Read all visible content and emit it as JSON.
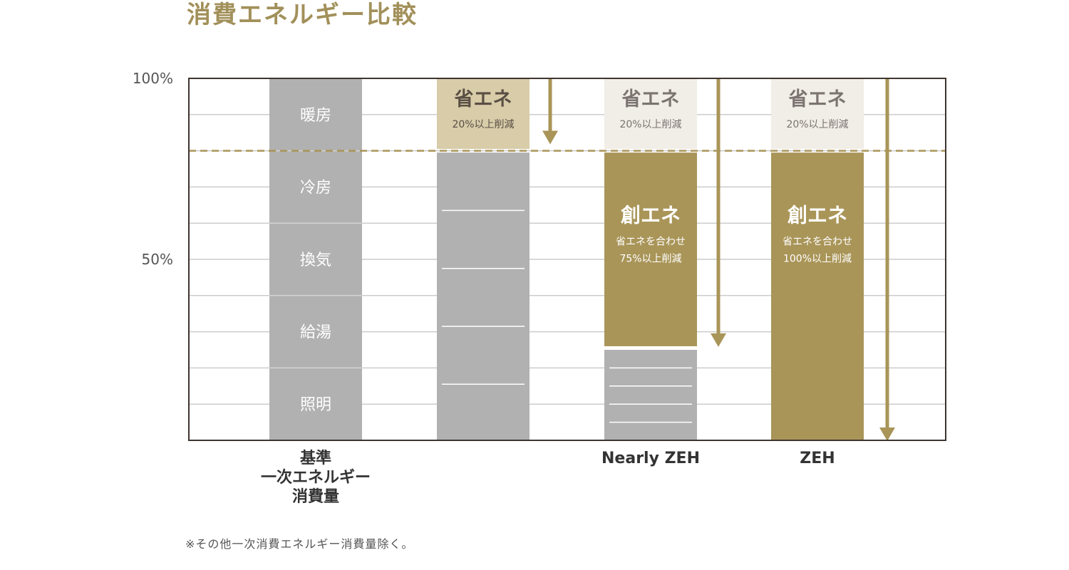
{
  "title": "消費エネルギー比較",
  "footnote": "※その他一次消費エネルギー消費量除く。",
  "colors": {
    "gold": "#a99558",
    "gray": "#b1b1b1",
    "light_beige": "#d8cca9",
    "pale": "#f1ede7",
    "grid": "#cccccc",
    "axis": "#3f3530",
    "title": "#a2905a"
  },
  "chart_data": {
    "type": "bar",
    "title": "消費エネルギー比較",
    "ylim": [
      0,
      100
    ],
    "y_ticks": [
      "100%",
      "50%"
    ],
    "y_tick_values": [
      100,
      50
    ],
    "grid": true,
    "reference_line": {
      "value": 80,
      "style": "dashed"
    },
    "categories": [
      {
        "label_lines": [
          "基準",
          "一次エネルギー",
          "消費量"
        ]
      },
      {
        "label_lines": []
      },
      {
        "label_lines": [
          "Nearly ZEH"
        ]
      },
      {
        "label_lines": [
          "ZEH"
        ]
      }
    ],
    "stacks": [
      {
        "segments": [
          {
            "label": "暖房",
            "from": 80,
            "to": 100,
            "kind": "gray"
          },
          {
            "label": "冷房",
            "from": 60,
            "to": 80,
            "kind": "gray"
          },
          {
            "label": "換気",
            "from": 40,
            "to": 60,
            "kind": "gray"
          },
          {
            "label": "給湯",
            "from": 20,
            "to": 40,
            "kind": "gray"
          },
          {
            "label": "照明",
            "from": 0,
            "to": 20,
            "kind": "gray"
          }
        ],
        "inner_lines": []
      },
      {
        "segments": [
          {
            "label": "省エネ",
            "sub": [
              "20%以上削減"
            ],
            "from": 80.5,
            "to": 100,
            "kind": "light_beige"
          },
          {
            "label": "",
            "from": 0,
            "to": 79.5,
            "kind": "gray"
          }
        ],
        "inner_lines": [
          63.5,
          47.5,
          31.5,
          15.5
        ],
        "arrow": {
          "from": 100,
          "to": 82
        }
      },
      {
        "segments": [
          {
            "label": "省エネ",
            "sub": [
              "20%以上削減"
            ],
            "from": 80.5,
            "to": 100,
            "kind": "pale"
          },
          {
            "label": "創エネ",
            "sub": [
              "省エネを合わせ",
              "75%以上削減"
            ],
            "from": 26,
            "to": 79.5,
            "kind": "gold"
          },
          {
            "label": "",
            "from": 0,
            "to": 25,
            "kind": "gray"
          }
        ],
        "inner_lines": [
          20,
          15,
          10,
          5
        ],
        "arrow": {
          "from": 100,
          "to": 26
        }
      },
      {
        "segments": [
          {
            "label": "省エネ",
            "sub": [
              "20%以上削減"
            ],
            "from": 80.5,
            "to": 100,
            "kind": "pale"
          },
          {
            "label": "創エネ",
            "sub": [
              "省エネを合わせ",
              "100%以上削減"
            ],
            "from": 0,
            "to": 79.5,
            "kind": "gold"
          }
        ],
        "inner_lines": [],
        "arrow": {
          "from": 100,
          "to": 0
        }
      }
    ]
  }
}
